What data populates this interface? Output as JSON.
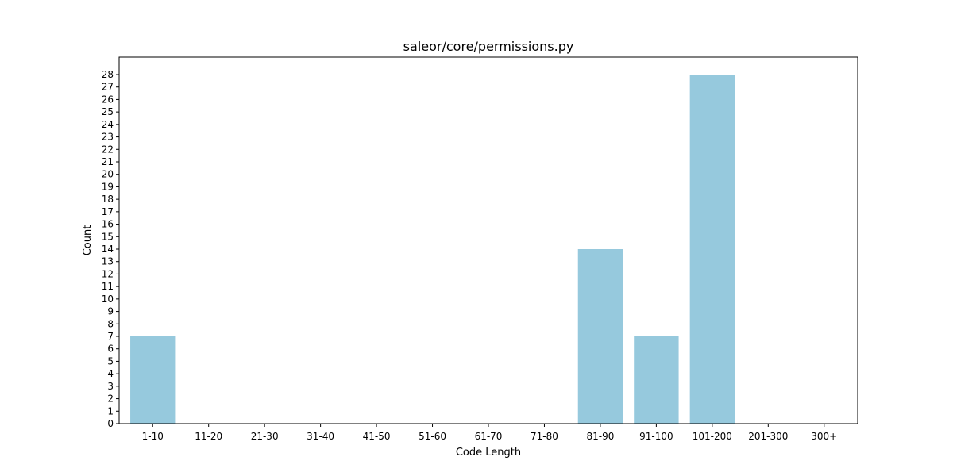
{
  "chart_data": {
    "type": "bar",
    "title": "saleor/core/permissions.py",
    "xlabel": "Code Length",
    "ylabel": "Count",
    "categories": [
      "1-10",
      "11-20",
      "21-30",
      "31-40",
      "41-50",
      "51-60",
      "61-70",
      "71-80",
      "81-90",
      "91-100",
      "101-200",
      "201-300",
      "300+"
    ],
    "values": [
      7,
      0,
      0,
      0,
      0,
      0,
      0,
      0,
      14,
      7,
      28,
      0,
      0
    ],
    "ylim": [
      0,
      29.4
    ],
    "yticks": [
      0,
      1,
      2,
      3,
      4,
      5,
      6,
      7,
      8,
      9,
      10,
      11,
      12,
      13,
      14,
      15,
      16,
      17,
      18,
      19,
      20,
      21,
      22,
      23,
      24,
      25,
      26,
      27,
      28
    ],
    "grid": false,
    "legend": "none",
    "bar_color": "#96c9dd"
  }
}
